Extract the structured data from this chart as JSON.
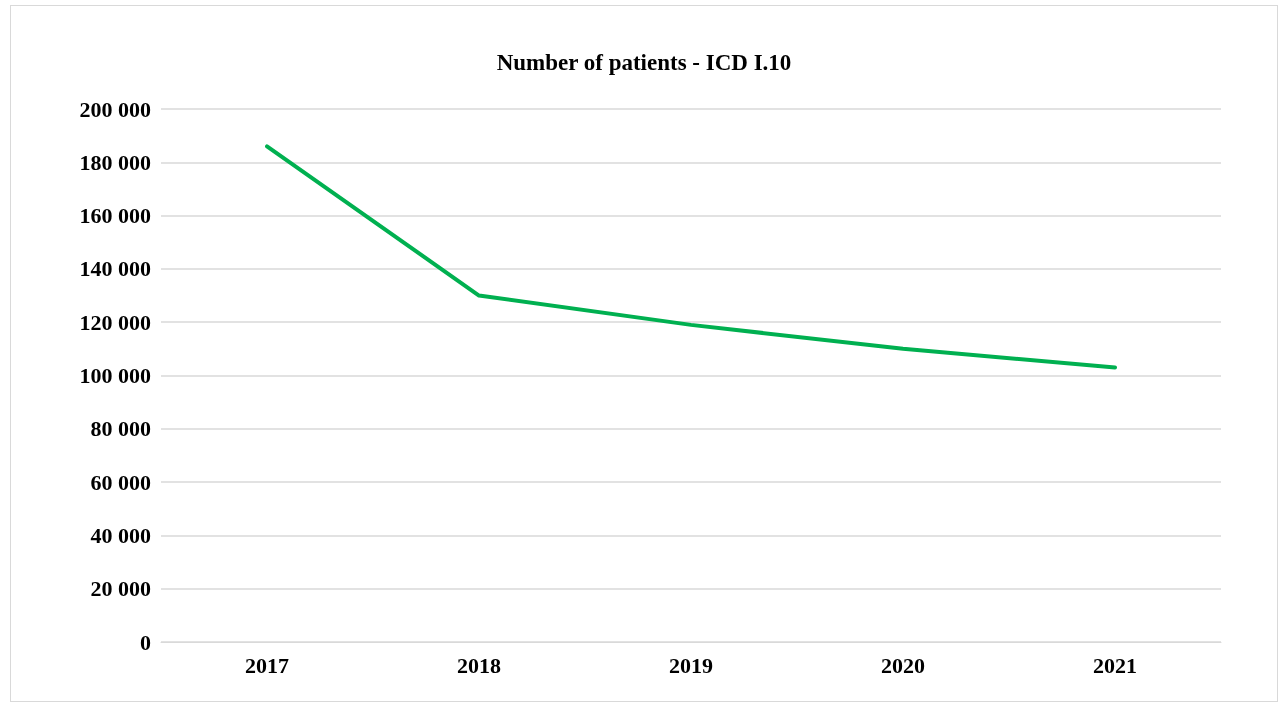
{
  "chart_data": {
    "type": "line",
    "title": "Number of patients - ICD I.10",
    "categories": [
      "2017",
      "2018",
      "2019",
      "2020",
      "2021"
    ],
    "series": [
      {
        "color": "#00b050",
        "values": [
          186000,
          130000,
          119000,
          110000,
          103000
        ]
      }
    ],
    "ylim": [
      0,
      200000
    ],
    "yticks": [
      {
        "value": 0,
        "label": "0"
      },
      {
        "value": 20000,
        "label": "20 000"
      },
      {
        "value": 40000,
        "label": "40 000"
      },
      {
        "value": 60000,
        "label": "60 000"
      },
      {
        "value": 80000,
        "label": "80 000"
      },
      {
        "value": 100000,
        "label": "100 000"
      },
      {
        "value": 120000,
        "label": "120 000"
      },
      {
        "value": 140000,
        "label": "140 000"
      },
      {
        "value": 160000,
        "label": "160 000"
      },
      {
        "value": 180000,
        "label": "180 000"
      },
      {
        "value": 200000,
        "label": "200 000"
      }
    ],
    "grid": "y",
    "marker": "none",
    "line_style": "solid"
  }
}
